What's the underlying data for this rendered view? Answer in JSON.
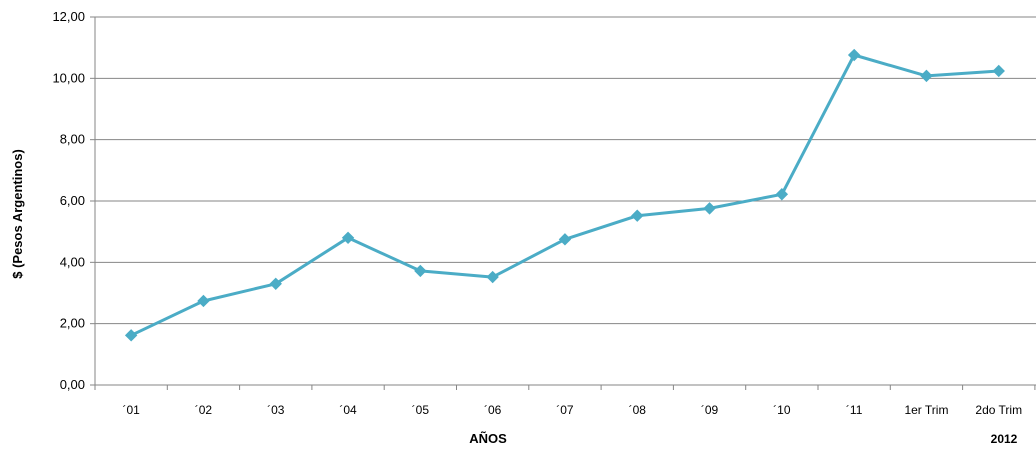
{
  "chart_data": {
    "type": "line",
    "categories": [
      "´01",
      "´02",
      "´03",
      "´04",
      "´05",
      "´06",
      "´07",
      "´08",
      "´09",
      "´10",
      "´11",
      "1er Trim",
      "2do Trim"
    ],
    "series": [
      {
        "values": [
          1.62,
          2.74,
          3.3,
          4.8,
          3.72,
          3.52,
          4.75,
          5.52,
          5.76,
          6.22,
          10.76,
          10.08,
          10.24
        ]
      }
    ],
    "xlabel": "AÑOS",
    "x_group_label": "2012",
    "ylabel": "$ (Pesos Argentinos)",
    "ylim": [
      0,
      12
    ],
    "y_ticks": [
      "0,00",
      "2,00",
      "4,00",
      "6,00",
      "8,00",
      "10,00",
      "12,00"
    ],
    "grid": true,
    "legend": "none",
    "colors": {
      "line": "#4BACC6",
      "grid": "#868686",
      "axis": "#868686"
    }
  }
}
